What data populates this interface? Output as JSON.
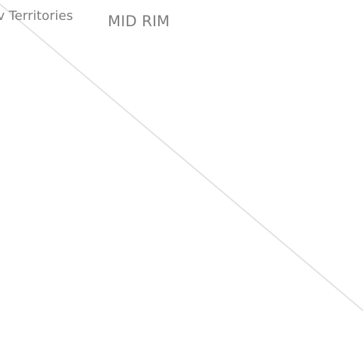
{
  "map": {
    "labels": {
      "territory": "v Territories",
      "region": "MID RIM"
    },
    "colors": {
      "background": "#ffffff",
      "label_text": "#7d7d7d",
      "boundary_line": "#e2e2e2"
    }
  }
}
